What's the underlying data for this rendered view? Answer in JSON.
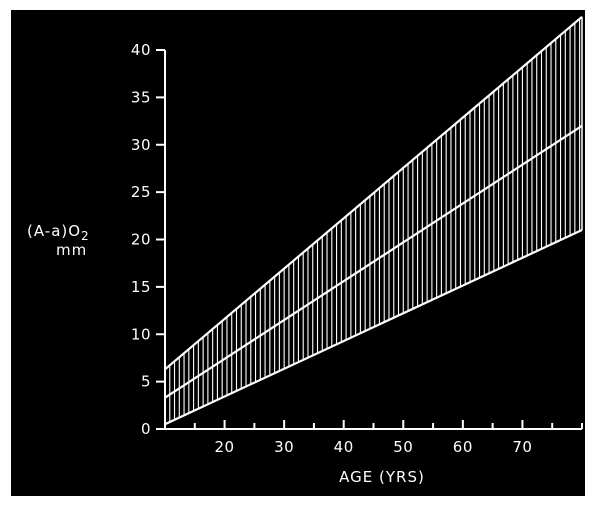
{
  "chart_data": {
    "type": "area",
    "ylabel": "(A-a)O2",
    "ylabel_sub": "2",
    "ylabel_unit": "mm",
    "xlabel": "AGE (YRS)",
    "xlim": [
      10,
      80
    ],
    "ylim": [
      0,
      40
    ],
    "x_ticks": [
      20,
      30,
      40,
      50,
      60,
      70
    ],
    "y_ticks": [
      0,
      5,
      10,
      15,
      20,
      25,
      30,
      35,
      40
    ],
    "grid": false,
    "band": {
      "x": [
        10,
        80
      ],
      "upper": [
        6.3,
        43.5
      ],
      "lower": [
        0.5,
        21.0
      ]
    },
    "series": [
      {
        "x": [
          10,
          80
        ],
        "values": [
          3.3,
          32.0
        ]
      }
    ]
  },
  "colors": {
    "background": "#000000",
    "frame": "#ffffff",
    "lines": "#ffffff",
    "hatch": "#ffffff"
  }
}
